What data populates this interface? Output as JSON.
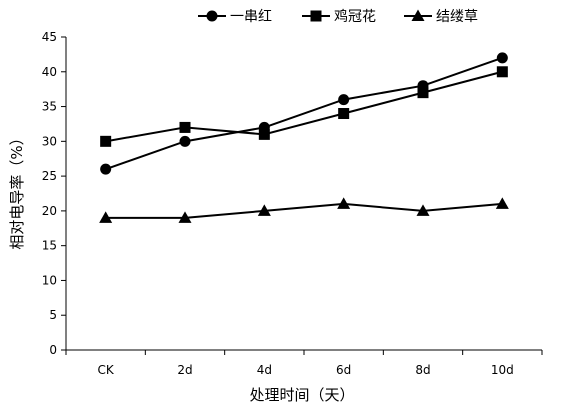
{
  "chart_data": {
    "type": "line",
    "title": "",
    "xlabel": "处理时间（天）",
    "ylabel": "相对电导率（%）",
    "categories": [
      "CK",
      "2d",
      "4d",
      "6d",
      "8d",
      "10d"
    ],
    "ylim": [
      0,
      45
    ],
    "yticks": [
      0,
      5,
      10,
      15,
      20,
      25,
      30,
      35,
      40,
      45
    ],
    "grid": false,
    "legend_position": "top",
    "series": [
      {
        "name": "一串红",
        "marker": "circle",
        "color": "#000000",
        "values": [
          26,
          30,
          32,
          36,
          38,
          42
        ]
      },
      {
        "name": "鸡冠花",
        "marker": "square",
        "color": "#000000",
        "values": [
          30,
          32,
          31,
          34,
          37,
          40
        ]
      },
      {
        "name": "结缕草",
        "marker": "triangle",
        "color": "#000000",
        "values": [
          19,
          19,
          20,
          21,
          20,
          21
        ]
      }
    ]
  }
}
